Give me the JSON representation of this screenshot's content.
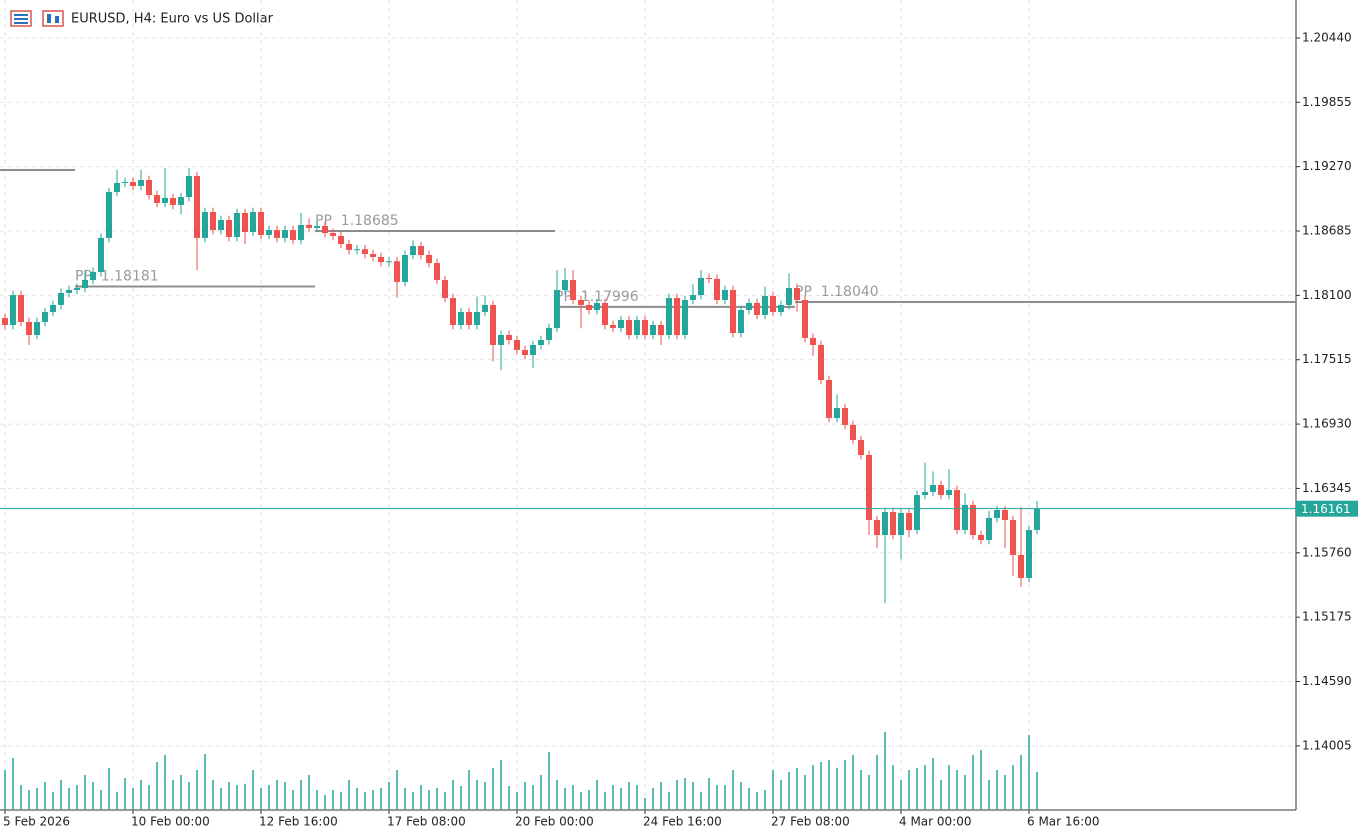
{
  "chart_data": {
    "type": "candlestick",
    "title": "EURUSD, H4:  Euro vs US Dollar",
    "xlim": [
      -0.625,
      161.375
    ],
    "xticks": [
      {
        "value": 0,
        "label": "5 Feb 2026"
      },
      {
        "value": 16,
        "label": "10 Feb 00:00"
      },
      {
        "value": 32,
        "label": "12 Feb 16:00"
      },
      {
        "value": 48,
        "label": "17 Feb 08:00"
      },
      {
        "value": 64,
        "label": "20 Feb 00:00"
      },
      {
        "value": 80,
        "label": "24 Feb 16:00"
      },
      {
        "value": 96,
        "label": "27 Feb 08:00"
      },
      {
        "value": 112,
        "label": "4 Mar 00:00"
      },
      {
        "value": 128,
        "label": "6 Mar 16:00"
      }
    ],
    "ylim": [
      1.13422,
      1.20785
    ],
    "yticks": [
      {
        "value": 1.2044,
        "label": "1.20440"
      },
      1.19855,
      {
        "value": 1.1927,
        "label": "1.19270"
      },
      1.18685,
      {
        "value": 1.181,
        "label": "1.18100"
      },
      1.17515,
      {
        "value": 1.1693,
        "label": "1.16930"
      },
      1.16345,
      {
        "value": 1.1576,
        "label": "1.15760"
      },
      1.15175,
      {
        "value": 1.1459,
        "label": "1.14590"
      },
      1.14005
    ],
    "grid": true,
    "up_color": "#26a69a",
    "down_color": "#ef5350",
    "volume_color": "#26a69a",
    "open": [
      1.17894,
      1.17831,
      1.18103,
      1.17858,
      1.1774,
      1.17858,
      1.17949,
      1.18013,
      1.18122,
      1.18149,
      1.18167,
      1.1824,
      1.18313,
      1.18622,
      1.1904,
      1.19122,
      1.19131,
      1.19094,
      1.19149,
      1.19012,
      1.1894,
      1.18985,
      1.18922,
      1.18994,
      1.19185,
      1.18622,
      1.18858,
      1.18694,
      1.18785,
      1.18631,
      1.18849,
      1.18676,
      1.18858,
      1.18649,
      1.18694,
      1.18622,
      1.18694,
      1.18603,
      1.1874,
      1.18713,
      1.18731,
      1.18667,
      1.1864,
      1.18567,
      1.18513,
      1.1852,
      1.18476,
      1.18449,
      1.18403,
      1.1841,
      1.18222,
      1.18467,
      1.18549,
      1.18467,
      1.18394,
      1.1824,
      1.18076,
      1.17831,
      1.17949,
      1.17831,
      1.17949,
      1.18013,
      1.17649,
      1.1774,
      1.17694,
      1.17604,
      1.17558,
      1.17649,
      1.17694,
      1.17804,
      1.18149,
      1.1824,
      1.18058,
      1.18013,
      1.17967,
      1.18031,
      1.17831,
      1.17804,
      1.17876,
      1.1774,
      1.17876,
      1.1774,
      1.17831,
      1.1774,
      1.18076,
      1.1774,
      1.18058,
      1.18103,
      1.18258,
      1.1825,
      1.18058,
      1.18149,
      1.17758,
      1.17967,
      1.18031,
      1.17922,
      1.18094,
      1.17949,
      1.18013,
      1.18167,
      1.18058,
      1.17713,
      1.17649,
      1.17331,
      1.16985,
      1.17076,
      1.16922,
      1.16785,
      1.16649,
      1.16058,
      1.15922,
      1.16131,
      1.15922,
      1.16122,
      1.15967,
      1.16285,
      1.16313,
      1.16376,
      1.16285,
      1.16331,
      1.15967,
      1.16195,
      1.15922,
      1.15876,
      1.16076,
      1.16149,
      1.16058,
      1.1574,
      1.15531,
      1.15967
    ],
    "high": [
      1.17934,
      1.18143,
      1.18143,
      1.17898,
      1.17898,
      1.17989,
      1.18053,
      1.18162,
      1.18189,
      1.18207,
      1.1833,
      1.18353,
      1.18662,
      1.1908,
      1.1924,
      1.19171,
      1.19171,
      1.1924,
      1.19189,
      1.19052,
      1.19258,
      1.19025,
      1.19034,
      1.19258,
      1.19225,
      1.18898,
      1.18898,
      1.18825,
      1.18825,
      1.18889,
      1.18889,
      1.18898,
      1.18898,
      1.18734,
      1.18734,
      1.18734,
      1.18734,
      1.1885,
      1.188,
      1.18771,
      1.18771,
      1.18707,
      1.1868,
      1.18607,
      1.1856,
      1.1856,
      1.18516,
      1.18489,
      1.1845,
      1.1845,
      1.18507,
      1.186,
      1.18589,
      1.18507,
      1.18434,
      1.1828,
      1.18116,
      1.17989,
      1.17989,
      1.1809,
      1.181,
      1.18053,
      1.1778,
      1.1778,
      1.17734,
      1.17644,
      1.17689,
      1.17734,
      1.17844,
      1.1833,
      1.1835,
      1.1833,
      1.18098,
      1.18053,
      1.18071,
      1.18071,
      1.17871,
      1.17916,
      1.17916,
      1.17916,
      1.17916,
      1.17871,
      1.17871,
      1.18116,
      1.18116,
      1.18098,
      1.182,
      1.1833,
      1.18298,
      1.1829,
      1.18189,
      1.18189,
      1.18007,
      1.18071,
      1.18071,
      1.1818,
      1.18134,
      1.18053,
      1.183,
      1.18207,
      1.18098,
      1.17753,
      1.17689,
      1.17371,
      1.172,
      1.17116,
      1.16962,
      1.16825,
      1.16689,
      1.16098,
      1.16171,
      1.16171,
      1.16162,
      1.16162,
      1.16325,
      1.1658,
      1.165,
      1.16416,
      1.1652,
      1.16371,
      1.163,
      1.16235,
      1.15962,
      1.1614,
      1.16189,
      1.16189,
      1.16098,
      1.1618,
      1.16007,
      1.1623
    ],
    "low": [
      1.17791,
      1.17791,
      1.17818,
      1.1765,
      1.177,
      1.17818,
      1.17909,
      1.17973,
      1.18082,
      1.18109,
      1.18127,
      1.182,
      1.18273,
      1.18582,
      1.19,
      1.19082,
      1.19054,
      1.19054,
      1.18972,
      1.189,
      1.189,
      1.18882,
      1.1884,
      1.18954,
      1.1833,
      1.18582,
      1.18654,
      1.18654,
      1.18591,
      1.18591,
      1.18567,
      1.18636,
      1.18609,
      1.18609,
      1.18582,
      1.18582,
      1.18563,
      1.18563,
      1.18673,
      1.18673,
      1.18627,
      1.186,
      1.18527,
      1.18473,
      1.18473,
      1.18436,
      1.18409,
      1.18363,
      1.18363,
      1.1808,
      1.18182,
      1.18427,
      1.18427,
      1.18354,
      1.182,
      1.18036,
      1.17791,
      1.17791,
      1.17791,
      1.17791,
      1.17909,
      1.175,
      1.1742,
      1.17654,
      1.17564,
      1.17518,
      1.1744,
      1.17609,
      1.17654,
      1.17764,
      1.18109,
      1.18018,
      1.178,
      1.17927,
      1.17927,
      1.17791,
      1.17764,
      1.17764,
      1.177,
      1.177,
      1.177,
      1.177,
      1.1765,
      1.177,
      1.177,
      1.177,
      1.18018,
      1.18063,
      1.1821,
      1.18018,
      1.18018,
      1.17718,
      1.17718,
      1.17927,
      1.17882,
      1.17882,
      1.17909,
      1.17909,
      1.17973,
      1.1795,
      1.17673,
      1.1755,
      1.17291,
      1.16945,
      1.16945,
      1.16882,
      1.16745,
      1.16609,
      1.15922,
      1.158,
      1.153,
      1.15882,
      1.157,
      1.159,
      1.15927,
      1.16245,
      1.16273,
      1.16245,
      1.16245,
      1.15927,
      1.15927,
      1.15882,
      1.15836,
      1.15836,
      1.16036,
      1.158,
      1.1555,
      1.1545,
      1.15491,
      1.15927
    ],
    "close": [
      1.17831,
      1.18103,
      1.17858,
      1.1774,
      1.17858,
      1.17949,
      1.18013,
      1.18122,
      1.18149,
      1.18167,
      1.1824,
      1.18313,
      1.18622,
      1.1904,
      1.19122,
      1.19131,
      1.19094,
      1.19149,
      1.19012,
      1.1894,
      1.18985,
      1.18922,
      1.18994,
      1.19185,
      1.18622,
      1.18858,
      1.18694,
      1.18785,
      1.18631,
      1.18849,
      1.18676,
      1.18858,
      1.18649,
      1.18694,
      1.18622,
      1.18694,
      1.18603,
      1.1874,
      1.18713,
      1.18731,
      1.18667,
      1.1864,
      1.18567,
      1.18513,
      1.1852,
      1.18476,
      1.18449,
      1.18403,
      1.1841,
      1.18222,
      1.18467,
      1.18549,
      1.18467,
      1.18394,
      1.1824,
      1.18076,
      1.17831,
      1.17949,
      1.17831,
      1.17949,
      1.18013,
      1.17649,
      1.1774,
      1.17694,
      1.17604,
      1.17558,
      1.17649,
      1.17694,
      1.17804,
      1.18149,
      1.1824,
      1.18058,
      1.18013,
      1.17967,
      1.18031,
      1.17831,
      1.17804,
      1.17876,
      1.1774,
      1.17876,
      1.1774,
      1.17831,
      1.1774,
      1.18076,
      1.1774,
      1.18058,
      1.18103,
      1.18258,
      1.1825,
      1.18058,
      1.18149,
      1.17758,
      1.17967,
      1.18031,
      1.17922,
      1.18094,
      1.17949,
      1.18013,
      1.18167,
      1.18058,
      1.17713,
      1.17649,
      1.17331,
      1.16985,
      1.17076,
      1.16922,
      1.16785,
      1.16649,
      1.16058,
      1.15922,
      1.16131,
      1.15922,
      1.16122,
      1.15967,
      1.16285,
      1.16313,
      1.16376,
      1.16285,
      1.16331,
      1.15967,
      1.16195,
      1.15922,
      1.15876,
      1.16076,
      1.16149,
      1.16058,
      1.1574,
      1.15531,
      1.15967,
      1.16161
    ],
    "volume": [
      40,
      52,
      25,
      20,
      22,
      28,
      18,
      30,
      22,
      25,
      35,
      28,
      20,
      42,
      18,
      32,
      22,
      30,
      25,
      48,
      55,
      30,
      35,
      28,
      40,
      56,
      30,
      22,
      28,
      25,
      26,
      40,
      22,
      25,
      30,
      28,
      20,
      30,
      35,
      20,
      15,
      20,
      18,
      30,
      22,
      18,
      20,
      22,
      28,
      40,
      22,
      18,
      25,
      20,
      22,
      18,
      30,
      24,
      40,
      30,
      28,
      42,
      50,
      24,
      18,
      28,
      25,
      35,
      58,
      30,
      22,
      25,
      18,
      20,
      30,
      18,
      25,
      22,
      28,
      25,
      12,
      22,
      28,
      18,
      30,
      32,
      28,
      18,
      32,
      25,
      25,
      40,
      28,
      22,
      18,
      20,
      40,
      30,
      38,
      42,
      35,
      45,
      48,
      50,
      42,
      50,
      55,
      40,
      35,
      55,
      78,
      45,
      30,
      40,
      42,
      45,
      52,
      30,
      45,
      40,
      35,
      55,
      60,
      30,
      40,
      35,
      45,
      55,
      75,
      38
    ],
    "pivots": [
      {
        "value": 1.1924,
        "x": [
          -0.625,
          8.75
        ]
      },
      {
        "label": "PP  1.18181",
        "value": 1.18181,
        "x": [
          8.75,
          38.75
        ]
      },
      {
        "label": "PP  1.18685",
        "value": 1.18685,
        "x": [
          38.75,
          68.75
        ]
      },
      {
        "label": "PP  1.17996",
        "value": 1.17996,
        "x": [
          68.75,
          98.75
        ]
      },
      {
        "label": "PP  1.18040",
        "value": 1.1804,
        "x": [
          98.75,
          161.375
        ]
      }
    ],
    "pivot_color": "#8c8c8c",
    "current_price": {
      "value": 1.16161,
      "color": "#26a69a"
    }
  }
}
